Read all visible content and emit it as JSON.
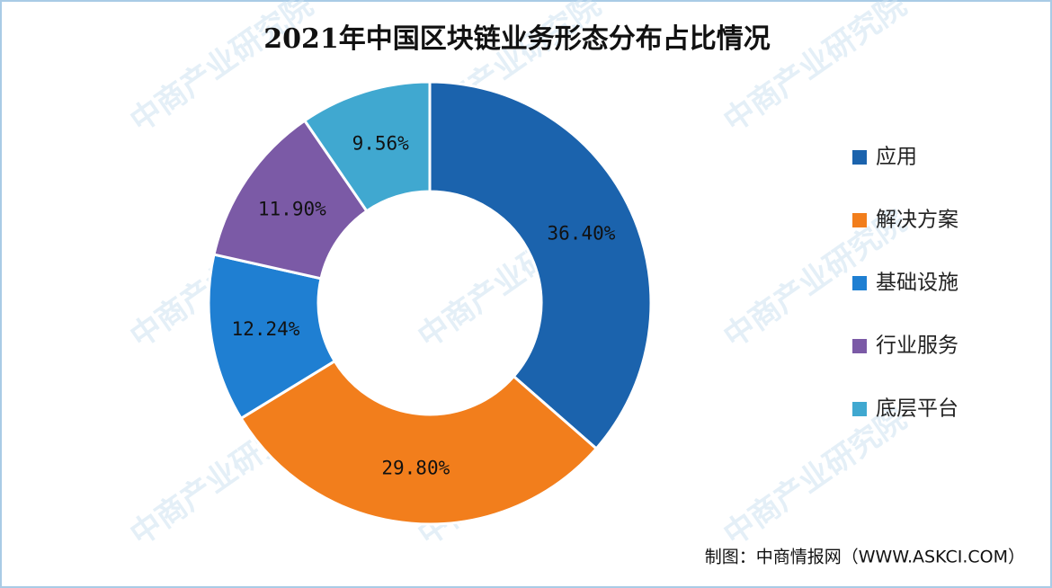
{
  "chart_data": {
    "type": "donut",
    "title": "2021年中国区块链业务形态分布占比情况",
    "categories": [
      "应用",
      "解决方案",
      "基础设施",
      "行业服务",
      "底层平台"
    ],
    "values": [
      36.4,
      29.8,
      12.24,
      11.9,
      9.56
    ],
    "value_labels": [
      "36.40%",
      "29.80%",
      "12.24%",
      "11.90%",
      "9.56%"
    ],
    "colors": [
      "#1b63ad",
      "#f27e1c",
      "#1f7fd2",
      "#7b5aa6",
      "#40a8d0"
    ],
    "legend": "right",
    "source": "制图：中商情报网（WWW.ASKCI.COM）",
    "watermark": "中商产业研究院"
  }
}
